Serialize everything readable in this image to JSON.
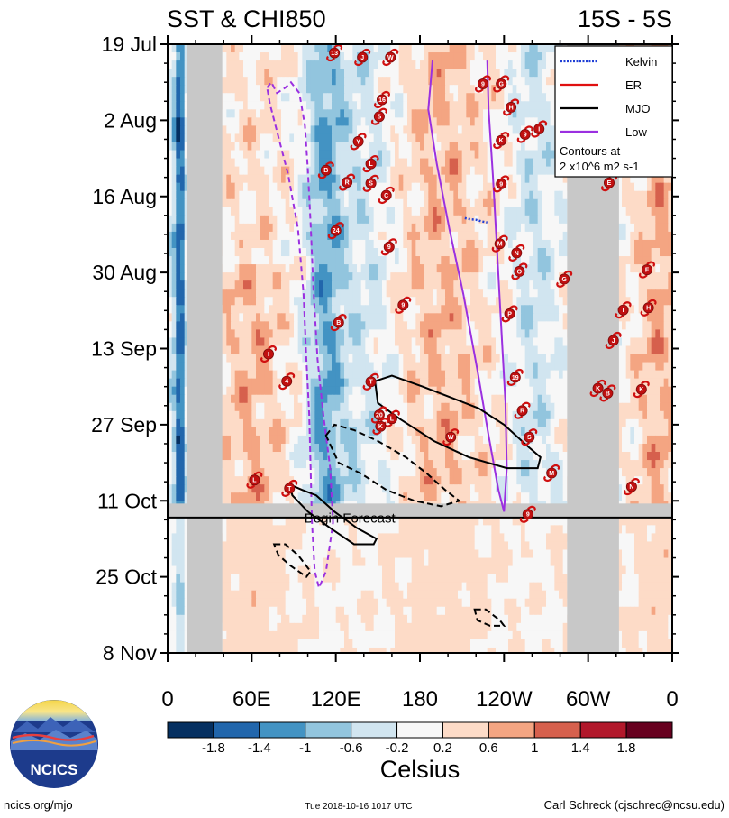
{
  "chart_data": {
    "type": "heatmap",
    "title_left": "SST & CHI850",
    "title_right": "15S - 5S",
    "x_axis": {
      "ticks": [
        {
          "label": "0",
          "lon": 0
        },
        {
          "label": "60E",
          "lon": 60
        },
        {
          "label": "120E",
          "lon": 120
        },
        {
          "label": "180",
          "lon": 180
        },
        {
          "label": "120W",
          "lon": 240
        },
        {
          "label": "60W",
          "lon": 300
        },
        {
          "label": "0",
          "lon": 360
        }
      ],
      "range": [
        0,
        360
      ]
    },
    "y_axis": {
      "ticks": [
        {
          "label": "19 Jul",
          "day": 0
        },
        {
          "label": "2 Aug",
          "day": 14
        },
        {
          "label": "16 Aug",
          "day": 28
        },
        {
          "label": "30 Aug",
          "day": 42
        },
        {
          "label": "13 Sep",
          "day": 56
        },
        {
          "label": "27 Sep",
          "day": 70
        },
        {
          "label": "11 Oct",
          "day": 84
        },
        {
          "label": "25 Oct",
          "day": 98
        },
        {
          "label": "8 Nov",
          "day": 112
        }
      ],
      "range": [
        0,
        112
      ]
    },
    "forecast_start_day": 87,
    "forecast_label": "Begin Forecast",
    "land_masks": [
      {
        "lon_start": 14,
        "lon_end": 39
      },
      {
        "lon_start": 285,
        "lon_end": 322
      }
    ],
    "colorbar": {
      "units": "Celsius",
      "levels": [
        -2.2,
        -1.8,
        -1.4,
        -1.0,
        -0.6,
        -0.2,
        0.2,
        0.6,
        1.0,
        1.4,
        1.8,
        2.2
      ],
      "labels": [
        "-1.8",
        "-1.4",
        "-1",
        "-0.6",
        "-0.2",
        "0.2",
        "0.6",
        "1",
        "1.4",
        "1.8"
      ],
      "colors": [
        "#053061",
        "#2166ac",
        "#4393c3",
        "#92c5de",
        "#d1e5f0",
        "#f7f7f7",
        "#fddbc7",
        "#f4a582",
        "#d6604d",
        "#b2182b",
        "#67001f"
      ]
    },
    "legend": {
      "entries": [
        {
          "name": "Kelvin",
          "color": "#1f3fd6",
          "style": "dotted"
        },
        {
          "name": "ER",
          "color": "#e01010",
          "style": "solid"
        },
        {
          "name": "MJO",
          "color": "#000000",
          "style": "solid"
        },
        {
          "name": "Low",
          "color": "#9b30e0",
          "style": "solid"
        }
      ],
      "note_line1": "Contours at",
      "note_line2": "2 x10^6 m2 s-1",
      "position": "top-right"
    },
    "contours": {
      "low": [
        {
          "sign": "neg",
          "pts": [
            [
              71,
              8
            ],
            [
              74,
              7
            ],
            [
              78,
              9
            ],
            [
              84,
              8
            ],
            [
              88,
              7
            ],
            [
              94,
              9
            ],
            [
              98,
              15
            ],
            [
              100,
              23
            ],
            [
              102,
              33
            ],
            [
              104,
              45
            ],
            [
              107,
              58
            ],
            [
              111,
              68
            ],
            [
              116,
              78
            ],
            [
              118,
              88
            ],
            [
              113,
              97
            ],
            [
              108,
              100
            ],
            [
              105,
              97
            ],
            [
              103,
              88
            ],
            [
              102,
              78
            ],
            [
              101,
              68
            ],
            [
              99,
              58
            ],
            [
              97,
              46
            ],
            [
              93,
              34
            ],
            [
              86,
              24
            ],
            [
              79,
              17
            ],
            [
              73,
              11
            ],
            [
              71,
              8
            ]
          ]
        },
        {
          "sign": "pos",
          "pts": [
            [
              189,
              3
            ],
            [
              186,
              12
            ],
            [
              192,
              22
            ],
            [
              201,
              34
            ],
            [
              211,
              46
            ],
            [
              221,
              60
            ],
            [
              229,
              72
            ],
            [
              236,
              82
            ],
            [
              240,
              86
            ],
            [
              242,
              78
            ],
            [
              241,
              66
            ],
            [
              238,
              52
            ],
            [
              235,
              38
            ],
            [
              232,
              24
            ],
            [
              229,
              12
            ],
            [
              228,
              3
            ]
          ]
        }
      ],
      "mjo": [
        {
          "sign": "pos",
          "pts": [
            [
              148,
              62
            ],
            [
              160,
              61
            ],
            [
              182,
              63
            ],
            [
              202,
              65
            ],
            [
              222,
              67
            ],
            [
              240,
              70
            ],
            [
              257,
              74
            ],
            [
              266,
              76
            ],
            [
              264,
              78
            ],
            [
              242,
              78
            ],
            [
              215,
              76
            ],
            [
              190,
              73
            ],
            [
              166,
              69
            ],
            [
              150,
              66
            ],
            [
              148,
              62
            ]
          ]
        },
        {
          "sign": "pos",
          "pts": [
            [
              87,
              81
            ],
            [
              96,
              82
            ],
            [
              106,
              83
            ],
            [
              119,
              86
            ],
            [
              135,
              89
            ],
            [
              149,
              91
            ],
            [
              147,
              92
            ],
            [
              133,
              92
            ],
            [
              116,
              89
            ],
            [
              100,
              86
            ],
            [
              89,
              83
            ],
            [
              87,
              81
            ]
          ]
        },
        {
          "sign": "neg",
          "pts": [
            [
              113,
              72
            ],
            [
              119,
              70
            ],
            [
              133,
              71
            ],
            [
              150,
              73
            ],
            [
              170,
              76
            ],
            [
              185,
              79
            ],
            [
              198,
              82
            ],
            [
              208,
              84
            ],
            [
              195,
              85
            ],
            [
              176,
              84
            ],
            [
              156,
              82
            ],
            [
              138,
              79
            ],
            [
              122,
              77
            ],
            [
              113,
              72
            ]
          ]
        },
        {
          "sign": "neg",
          "pts": [
            [
              76,
              92
            ],
            [
              84,
              92
            ],
            [
              93,
              94
            ],
            [
              102,
              97
            ],
            [
              99,
              98
            ],
            [
              88,
              96
            ],
            [
              79,
              94
            ],
            [
              76,
              92
            ]
          ]
        },
        {
          "sign": "neg",
          "pts": [
            [
              219,
              104
            ],
            [
              227,
              104
            ],
            [
              237,
              106
            ],
            [
              240,
              107
            ],
            [
              230,
              107
            ],
            [
              221,
              106
            ],
            [
              219,
              104
            ]
          ]
        }
      ],
      "kelvin": [
        {
          "pts": [
            [
              212,
              32
            ],
            [
              216,
              32.2
            ],
            [
              220,
              32.3
            ],
            [
              224,
              32.6
            ],
            [
              228,
              32.8
            ]
          ]
        }
      ]
    },
    "storms": [
      {
        "name": "13",
        "lon": 119,
        "day": 1.6
      },
      {
        "name": "J",
        "lon": 139,
        "day": 2.4
      },
      {
        "name": "W",
        "lon": 159,
        "day": 2.4
      },
      {
        "name": "G",
        "lon": 238,
        "day": 7.3
      },
      {
        "name": "9",
        "lon": 225,
        "day": 7.3
      },
      {
        "name": "16",
        "lon": 153,
        "day": 10.2
      },
      {
        "name": "H",
        "lon": 245,
        "day": 11.6
      },
      {
        "name": "S",
        "lon": 151,
        "day": 13.3
      },
      {
        "name": "I",
        "lon": 265,
        "day": 15.6
      },
      {
        "name": "9",
        "lon": 255,
        "day": 16.6
      },
      {
        "name": "K",
        "lon": 238,
        "day": 17.7
      },
      {
        "name": "Y",
        "lon": 136,
        "day": 17.9
      },
      {
        "name": "L",
        "lon": 145,
        "day": 22.0
      },
      {
        "name": "B",
        "lon": 113,
        "day": 23.2
      },
      {
        "name": "R",
        "lon": 128,
        "day": 25.4
      },
      {
        "name": "S",
        "lon": 145,
        "day": 25.6
      },
      {
        "name": "9",
        "lon": 238,
        "day": 25.7
      },
      {
        "name": "E",
        "lon": 315,
        "day": 25.5
      },
      {
        "name": "C",
        "lon": 156,
        "day": 27.8
      },
      {
        "name": "24",
        "lon": 120,
        "day": 34.3
      },
      {
        "name": "M",
        "lon": 237,
        "day": 36.7
      },
      {
        "name": "9",
        "lon": 158,
        "day": 37.3
      },
      {
        "name": "N",
        "lon": 249,
        "day": 38.4
      },
      {
        "name": "F",
        "lon": 342,
        "day": 41.5
      },
      {
        "name": "O",
        "lon": 251,
        "day": 41.8
      },
      {
        "name": "G",
        "lon": 283,
        "day": 43.2
      },
      {
        "name": "9",
        "lon": 168,
        "day": 48.0
      },
      {
        "name": "I",
        "lon": 325,
        "day": 48.9
      },
      {
        "name": "H",
        "lon": 343,
        "day": 48.5
      },
      {
        "name": "P",
        "lon": 244,
        "day": 49.6
      },
      {
        "name": "B",
        "lon": 122,
        "day": 51.2
      },
      {
        "name": "J",
        "lon": 318,
        "day": 54.5
      },
      {
        "name": "I",
        "lon": 72,
        "day": 57.0
      },
      {
        "name": "19",
        "lon": 248,
        "day": 61.3
      },
      {
        "name": "4",
        "lon": 85,
        "day": 62.0
      },
      {
        "name": "T",
        "lon": 145,
        "day": 62.1
      },
      {
        "name": "K",
        "lon": 307,
        "day": 63.3
      },
      {
        "name": "K",
        "lon": 338,
        "day": 63.5
      },
      {
        "name": "B",
        "lon": 314,
        "day": 64.2
      },
      {
        "name": "R",
        "lon": 253,
        "day": 67.4
      },
      {
        "name": "20",
        "lon": 151,
        "day": 68.2
      },
      {
        "name": "L",
        "lon": 160,
        "day": 68.9
      },
      {
        "name": "K",
        "lon": 152,
        "day": 70.3
      },
      {
        "name": "W",
        "lon": 202,
        "day": 72.3
      },
      {
        "name": "S",
        "lon": 258,
        "day": 72.3
      },
      {
        "name": "M",
        "lon": 274,
        "day": 78.9
      },
      {
        "name": "L",
        "lon": 62,
        "day": 80.2
      },
      {
        "name": "T",
        "lon": 87,
        "day": 81.7
      },
      {
        "name": "N",
        "lon": 331,
        "day": 81.4
      },
      {
        "name": "9",
        "lon": 257,
        "day": 86.5
      }
    ]
  },
  "footer": {
    "left": "ncics.org/mjo",
    "center": "Tue 2018-10-16 1017 UTC",
    "right": "Carl Schreck (cjschrec@ncsu.edu)",
    "logo_text": "NCICS"
  },
  "colors": {
    "kelvin": "#1f3fd6",
    "er": "#e01010",
    "mjo": "#000000",
    "low": "#9b30e0",
    "land": "#c8c8c8",
    "forecast_band": "#c8c8c8"
  }
}
